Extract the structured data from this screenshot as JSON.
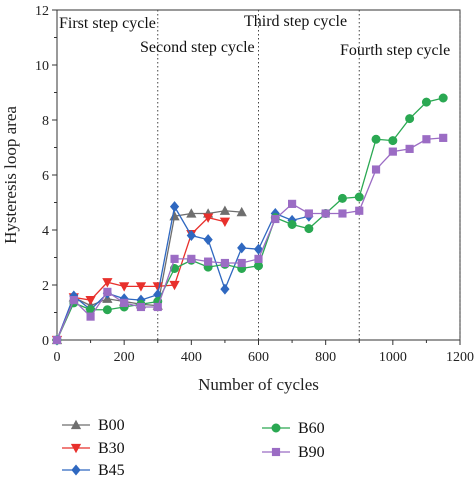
{
  "chart_data": {
    "type": "line",
    "title": "",
    "xlabel": "Number of cycles",
    "ylabel": "Hysteresis loop area",
    "xlim": [
      0,
      1200
    ],
    "ylim": [
      0,
      12
    ],
    "x_ticks": [
      0,
      200,
      400,
      600,
      800,
      1000,
      1200
    ],
    "y_ticks": [
      0,
      2,
      4,
      6,
      8,
      10,
      12
    ],
    "grid": false,
    "legend_placement": "below-plot",
    "step_boundaries": [
      300,
      600,
      900,
      1200
    ],
    "annotations": [
      "First step cycle",
      "Second step cycle",
      "Third step cycle",
      "Fourth step cycle"
    ],
    "series": [
      {
        "name": "B00",
        "marker": "triangle-up",
        "color": "#6e6e6e",
        "x": [
          0,
          50,
          100,
          150,
          200,
          250,
          300,
          350,
          400,
          450,
          500,
          550
        ],
        "y": [
          0,
          1.55,
          1.25,
          1.5,
          1.4,
          1.3,
          1.25,
          4.5,
          4.6,
          4.6,
          4.7,
          4.65
        ]
      },
      {
        "name": "B30",
        "marker": "triangle-down",
        "color": "#e8302c",
        "x": [
          0,
          50,
          100,
          150,
          200,
          250,
          300,
          350,
          400,
          450,
          500
        ],
        "y": [
          0,
          1.55,
          1.45,
          2.1,
          1.95,
          1.95,
          1.95,
          2.0,
          3.85,
          4.45,
          4.3
        ]
      },
      {
        "name": "B45",
        "marker": "diamond",
        "color": "#2f68c0",
        "x": [
          0,
          50,
          100,
          150,
          200,
          250,
          300,
          350,
          400,
          450,
          500,
          550,
          600,
          650,
          700,
          750
        ],
        "y": [
          0,
          1.6,
          1.1,
          1.7,
          1.5,
          1.45,
          1.65,
          4.85,
          3.8,
          3.65,
          1.85,
          3.35,
          3.3,
          4.6,
          4.35,
          4.5
        ]
      },
      {
        "name": "B60",
        "marker": "circle",
        "color": "#2aa852",
        "x": [
          0,
          50,
          100,
          150,
          200,
          250,
          300,
          350,
          400,
          450,
          500,
          550,
          600,
          650,
          700,
          750,
          800,
          850,
          900,
          950,
          1000,
          1050,
          1100,
          1150
        ],
        "y": [
          0,
          1.35,
          1.1,
          1.1,
          1.2,
          1.3,
          1.4,
          2.6,
          2.9,
          2.65,
          2.75,
          2.6,
          2.7,
          4.45,
          4.2,
          4.05,
          4.6,
          5.15,
          5.2,
          7.3,
          7.25,
          8.05,
          8.65,
          8.8
        ]
      },
      {
        "name": "B90",
        "marker": "square",
        "color": "#9b6cc4",
        "x": [
          0,
          50,
          100,
          150,
          200,
          250,
          300,
          350,
          400,
          450,
          500,
          550,
          600,
          650,
          700,
          750,
          800,
          850,
          900,
          950,
          1000,
          1050,
          1100,
          1150
        ],
        "y": [
          0,
          1.45,
          0.85,
          1.75,
          1.35,
          1.2,
          1.2,
          2.95,
          2.95,
          2.85,
          2.8,
          2.8,
          2.95,
          4.4,
          4.95,
          4.6,
          4.6,
          4.6,
          4.7,
          6.2,
          6.85,
          6.95,
          7.3,
          7.35
        ]
      }
    ]
  }
}
